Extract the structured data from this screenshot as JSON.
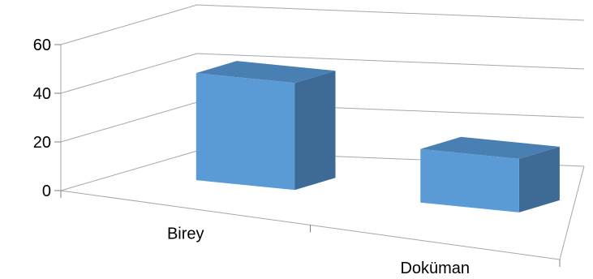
{
  "chart_data": {
    "type": "bar",
    "three_d": true,
    "categories": [
      "Birey",
      "Doküman"
    ],
    "values": [
      44,
      22
    ],
    "ylim": [
      0,
      60
    ],
    "yticks": [
      0,
      20,
      40,
      60
    ],
    "ytick_labels": [
      "0",
      "20",
      "40",
      "60"
    ],
    "title": "",
    "xlabel": "",
    "ylabel": "",
    "grid": true,
    "legend": "none",
    "colors": {
      "bar_front": "#5B9BD5",
      "bar_top": "#4A7FB3",
      "bar_side": "#3E6B95",
      "gridline": "#A6A6A6",
      "axis": "#808080"
    }
  }
}
